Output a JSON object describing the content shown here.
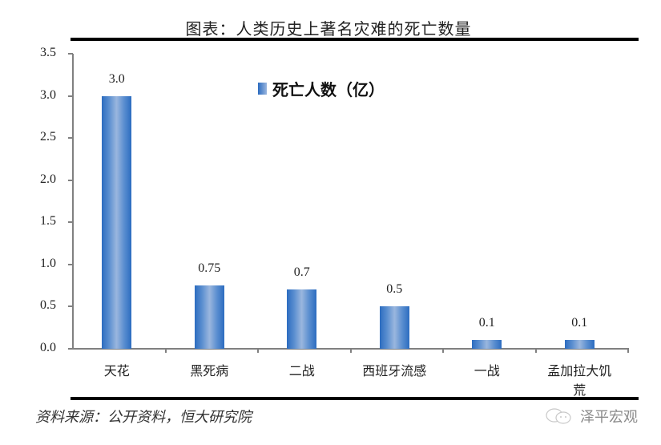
{
  "header": {
    "title": "图表：人类历史上著名灾难的死亡数量"
  },
  "legend": {
    "label": "死亡人数（亿）",
    "color": "#4a7fc8"
  },
  "footer": {
    "source": "资料来源：公开资料，恒大研究院",
    "watermark": "泽平宏观"
  },
  "chart_data": {
    "type": "bar",
    "title": "图表：人类历史上著名灾难的死亡数量",
    "xlabel": "",
    "ylabel": "",
    "ylim": [
      0,
      3.5
    ],
    "yticks": [
      "0.0",
      "0.5",
      "1.0",
      "1.5",
      "2.0",
      "2.5",
      "3.0",
      "3.5"
    ],
    "categories": [
      "天花",
      "黑死病",
      "二战",
      "西班牙流感",
      "一战",
      "孟加拉大饥荒"
    ],
    "series": [
      {
        "name": "死亡人数（亿）",
        "values": [
          3.0,
          0.75,
          0.7,
          0.5,
          0.1,
          0.1
        ],
        "labels": [
          "3.0",
          "0.75",
          "0.7",
          "0.5",
          "0.1",
          "0.1"
        ],
        "color": "#4a7fc8"
      }
    ],
    "grid": false,
    "legend_position": "top-center-inside"
  }
}
